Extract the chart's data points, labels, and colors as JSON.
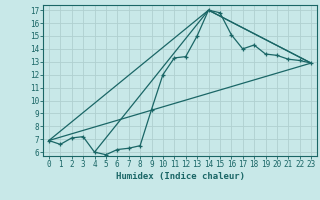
{
  "xlabel": "Humidex (Indice chaleur)",
  "bg_color": "#c8e8e8",
  "grid_color": "#b0d0d0",
  "line_color": "#1a6666",
  "xlim": [
    -0.5,
    23.5
  ],
  "ylim": [
    5.7,
    17.4
  ],
  "xticks": [
    0,
    1,
    2,
    3,
    4,
    5,
    6,
    7,
    8,
    9,
    10,
    11,
    12,
    13,
    14,
    15,
    16,
    17,
    18,
    19,
    20,
    21,
    22,
    23
  ],
  "yticks": [
    6,
    7,
    8,
    9,
    10,
    11,
    12,
    13,
    14,
    15,
    16,
    17
  ],
  "series1_x": [
    0,
    1,
    2,
    3,
    4,
    5,
    6,
    7,
    8,
    9,
    10,
    11,
    12,
    13,
    14,
    15,
    16,
    17,
    18,
    19,
    20,
    21,
    22,
    23
  ],
  "series1_y": [
    6.9,
    6.6,
    7.1,
    7.2,
    6.0,
    5.8,
    6.2,
    6.3,
    6.5,
    9.3,
    12.0,
    13.3,
    13.4,
    15.0,
    17.0,
    16.8,
    15.1,
    14.0,
    14.3,
    13.6,
    13.5,
    13.2,
    13.1,
    12.9
  ],
  "series2_x": [
    0,
    23
  ],
  "series2_y": [
    6.9,
    12.9
  ],
  "series3_x": [
    0,
    14,
    23
  ],
  "series3_y": [
    6.9,
    17.0,
    12.9
  ],
  "series4_x": [
    4,
    14,
    23
  ],
  "series4_y": [
    6.0,
    17.0,
    12.9
  ]
}
